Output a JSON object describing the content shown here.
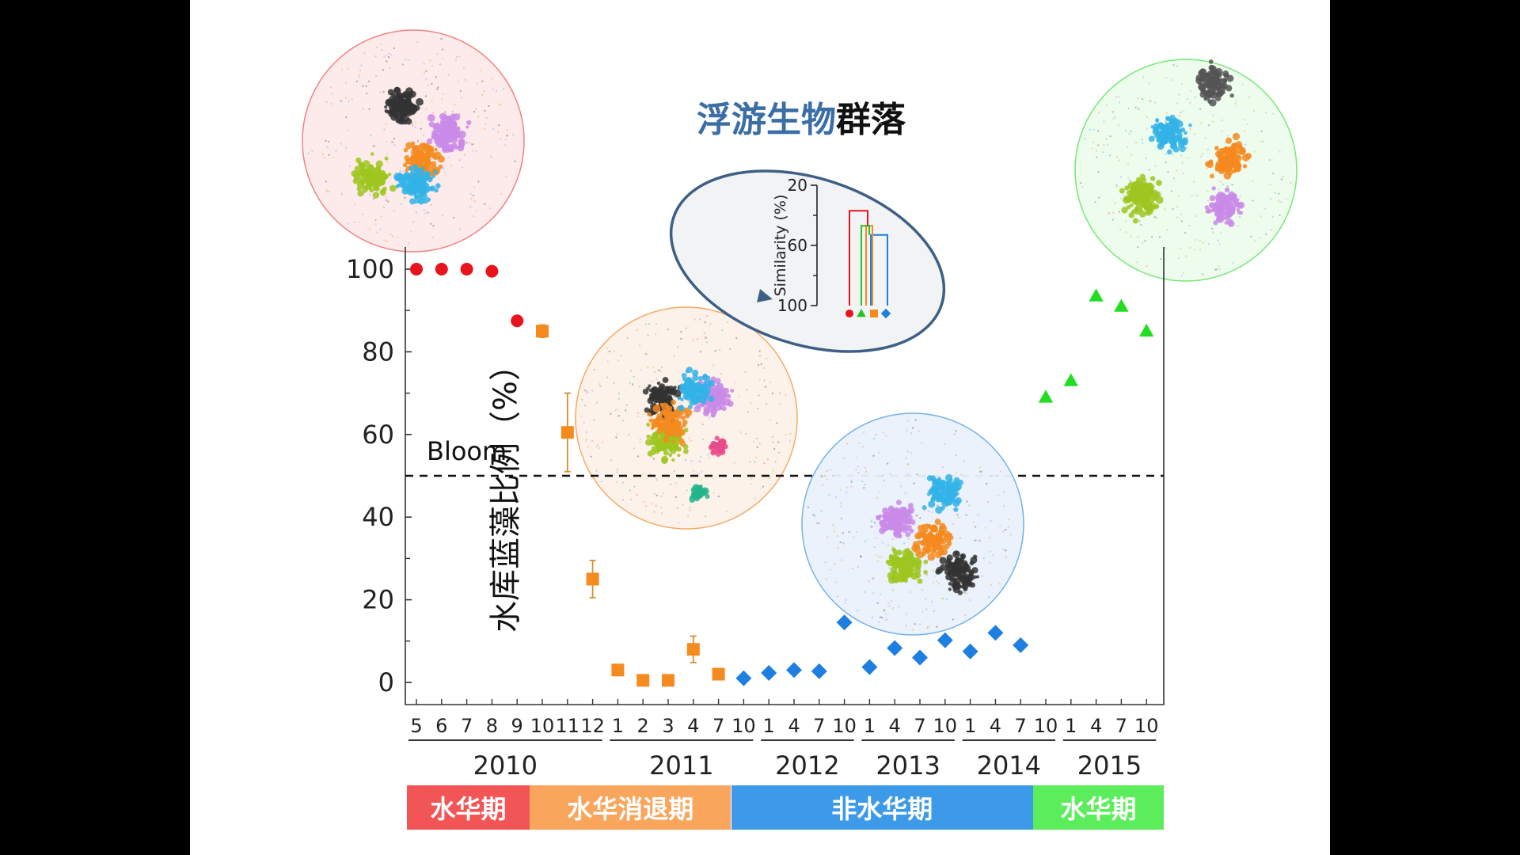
{
  "chart_data": {
    "type": "scatter",
    "ylabel": "水库蓝藻比例（%）",
    "ylim": [
      0,
      100
    ],
    "yticks": [
      0,
      20,
      40,
      60,
      80,
      100
    ],
    "x_labels": [
      "5",
      "6",
      "7",
      "8",
      "9",
      "10",
      "11",
      "12",
      "1",
      "2",
      "3",
      "4",
      "7",
      "10",
      "1",
      "4",
      "7",
      "10",
      "1",
      "4",
      "7",
      "10",
      "1",
      "4",
      "7",
      "10",
      "1",
      "4",
      "7",
      "10"
    ],
    "years": [
      {
        "label": "2010",
        "start": 0,
        "end": 7
      },
      {
        "label": "2011",
        "start": 8,
        "end": 13
      },
      {
        "label": "2012",
        "start": 14,
        "end": 17
      },
      {
        "label": "2013",
        "start": 18,
        "end": 21
      },
      {
        "label": "2014",
        "start": 22,
        "end": 25
      },
      {
        "label": "2015",
        "start": 26,
        "end": 29
      }
    ],
    "threshold": {
      "value": 50,
      "label": "Bloom"
    },
    "series": [
      {
        "marker": "circle",
        "color": "#e8141c",
        "points": [
          {
            "i": 0,
            "y": 100
          },
          {
            "i": 1,
            "y": 100
          },
          {
            "i": 2,
            "y": 100
          },
          {
            "i": 3,
            "y": 99.5
          },
          {
            "i": 4,
            "y": 87.5
          }
        ]
      },
      {
        "marker": "square",
        "color": "#f58a1f",
        "points": [
          {
            "i": 5,
            "y": 85,
            "err": 1.5
          },
          {
            "i": 6,
            "y": 60.5,
            "err": 9.5
          },
          {
            "i": 7,
            "y": 25,
            "err": 4.5
          },
          {
            "i": 8,
            "y": 3
          },
          {
            "i": 9,
            "y": 0.5
          },
          {
            "i": 10,
            "y": 0.5
          },
          {
            "i": 11,
            "y": 8,
            "err": 3.2
          },
          {
            "i": 12,
            "y": 2
          }
        ]
      },
      {
        "marker": "diamond",
        "color": "#1e7fe0",
        "points": [
          {
            "i": 13,
            "y": 1
          },
          {
            "i": 14,
            "y": 2.3
          },
          {
            "i": 15,
            "y": 3
          },
          {
            "i": 16,
            "y": 2.7
          },
          {
            "i": 17,
            "y": 14.5
          },
          {
            "i": 18,
            "y": 3.7
          },
          {
            "i": 19,
            "y": 8.3
          },
          {
            "i": 20,
            "y": 6
          },
          {
            "i": 21,
            "y": 10.2
          },
          {
            "i": 22,
            "y": 7.5
          },
          {
            "i": 23,
            "y": 12
          },
          {
            "i": 24,
            "y": 9
          }
        ]
      },
      {
        "marker": "triangle",
        "color": "#22dd22",
        "points": [
          {
            "i": 25,
            "y": 69
          },
          {
            "i": 26,
            "y": 73
          },
          {
            "i": 27,
            "y": 93.5
          },
          {
            "i": 28,
            "y": 91
          },
          {
            "i": 29,
            "y": 85
          }
        ]
      }
    ],
    "periods": [
      {
        "label": "水华期",
        "color": "#f25555",
        "start": 0,
        "end": 4
      },
      {
        "label": "水华消退期",
        "color": "#f9a55c",
        "start": 5,
        "end": 12
      },
      {
        "label": "非水华期",
        "color": "#3d9ae8",
        "start": 13,
        "end": 24
      },
      {
        "label": "水华期",
        "color": "#5ced5c",
        "start": 25,
        "end": 29
      }
    ],
    "inset": {
      "title_part1": "浮游生物",
      "title_part2": "群落",
      "title_color1": "#3a6ea5",
      "ylabel": "Similarity (%)",
      "ticks": [
        "20",
        "60",
        "100"
      ],
      "clusters": [
        {
          "marker": "circle",
          "color": "#e8141c",
          "similarity": 37
        },
        {
          "marker": "triangle",
          "color": "#22c322",
          "similarity": 47
        },
        {
          "marker": "square",
          "color": "#f58a1f",
          "similarity": 47
        },
        {
          "marker": "diamond",
          "color": "#1e7fe0",
          "similarity": 53
        }
      ]
    },
    "networks": [
      {
        "name": "network-2010",
        "color": "#f27b7b",
        "fill": "#fdeaea",
        "modules": [
          "#9ec520",
          "#c98ae8",
          "#333333",
          "#f58a1f",
          "#33b3e8"
        ]
      },
      {
        "name": "network-2011",
        "color": "#f5a55c",
        "fill": "#fdf2e8",
        "modules": [
          "#9ec520",
          "#c98ae8",
          "#333333",
          "#f58a1f",
          "#33b3e8",
          "#e84a8a",
          "#22b58a"
        ]
      },
      {
        "name": "network-2012-2014",
        "color": "#6aaee8",
        "fill": "#eaf2fb",
        "modules": [
          "#9ec520",
          "#c98ae8",
          "#333333",
          "#f58a1f",
          "#33b3e8"
        ]
      },
      {
        "name": "network-2015",
        "color": "#6ee86e",
        "fill": "#eefcee",
        "modules": [
          "#9ec520",
          "#c98ae8",
          "#33b3e8",
          "#f58a1f",
          "#555555"
        ]
      }
    ]
  }
}
